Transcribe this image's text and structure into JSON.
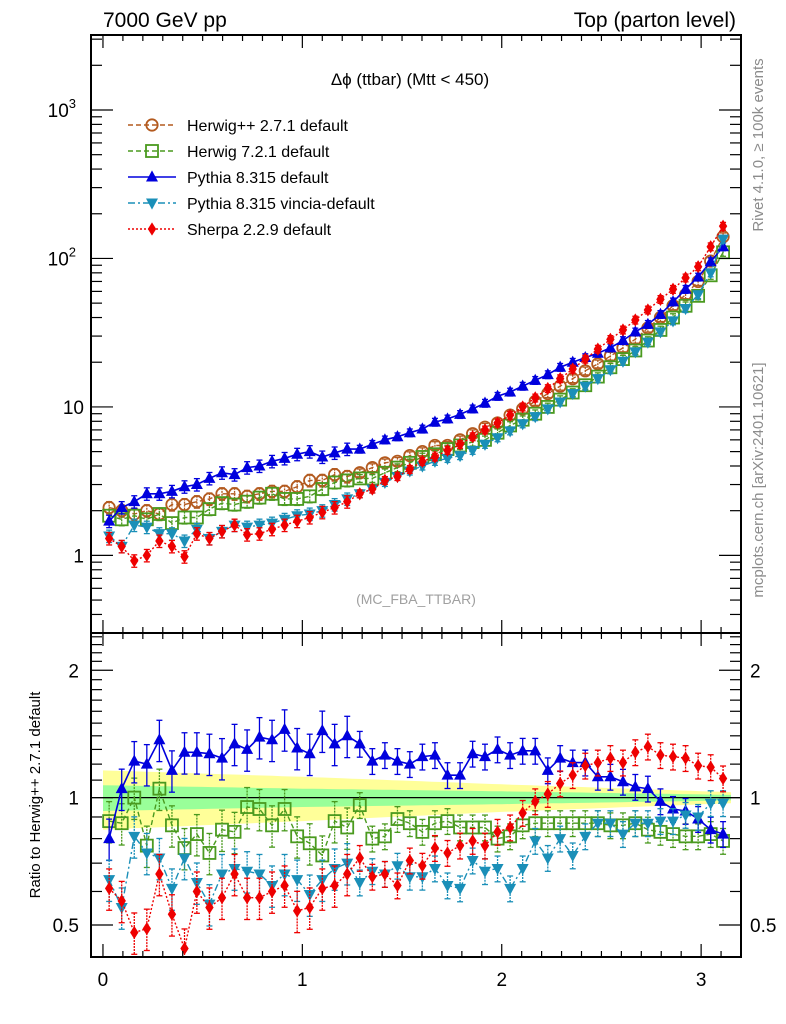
{
  "header": {
    "left": "7000 GeV pp",
    "right": "Top (parton level)"
  },
  "side_labels": {
    "rivet": "Rivet 4.1.0, ≥ 100k events",
    "mcplots": "mcplots.cern.ch [arXiv:2401.10621]"
  },
  "chart_data": [
    {
      "type": "line",
      "title": "Δϕ (ttbar) (Mtt < 450)",
      "watermark": "(MC_FBA_TTBAR)",
      "xlabel": "",
      "ylabel": "",
      "yscale": "log",
      "xlim": [
        -0.06,
        3.2
      ],
      "ylim": [
        0.3,
        3200
      ],
      "x_ticks": [
        0,
        1,
        2,
        3
      ],
      "x_tick_labels": [
        "0",
        "1",
        "2",
        "3"
      ],
      "y_ticks": [
        1,
        10,
        100,
        1000
      ],
      "y_tick_labels": [
        "1",
        "10",
        "10^2",
        "10^3"
      ],
      "legend_position": "top-left",
      "x": [
        0.031,
        0.094,
        0.157,
        0.22,
        0.283,
        0.346,
        0.409,
        0.471,
        0.534,
        0.597,
        0.66,
        0.723,
        0.785,
        0.848,
        0.911,
        0.974,
        1.037,
        1.1,
        1.162,
        1.225,
        1.288,
        1.351,
        1.414,
        1.477,
        1.539,
        1.602,
        1.665,
        1.728,
        1.791,
        1.854,
        1.916,
        1.979,
        2.042,
        2.105,
        2.168,
        2.231,
        2.293,
        2.356,
        2.419,
        2.482,
        2.545,
        2.608,
        2.67,
        2.733,
        2.796,
        2.859,
        2.922,
        2.985,
        3.048,
        3.11
      ],
      "series": [
        {
          "name": "Herwig++ 2.7.1 default",
          "color": "#b35a1f",
          "marker": "open-circle",
          "line": "dashed",
          "values": [
            2.1,
            2.0,
            1.9,
            2.0,
            1.9,
            2.2,
            2.2,
            2.3,
            2.4,
            2.6,
            2.6,
            2.5,
            2.6,
            2.7,
            2.7,
            2.9,
            3.2,
            3.2,
            3.5,
            3.4,
            3.6,
            3.9,
            4.2,
            4.3,
            4.7,
            5.0,
            5.5,
            5.5,
            6.0,
            6.6,
            7.3,
            7.8,
            8.8,
            9.7,
            10.9,
            12.3,
            13.8,
            15.5,
            17.5,
            19.5,
            22.0,
            25.0,
            28.6,
            34.0,
            40.0,
            48.0,
            57.0,
            70.0,
            96.0,
            140.0
          ]
        },
        {
          "name": "Herwig 7.2.1 default",
          "color": "#4a9a1f",
          "marker": "open-square",
          "line": "dashed",
          "values": [
            1.85,
            1.75,
            1.85,
            1.75,
            1.9,
            1.65,
            1.8,
            1.8,
            2.05,
            2.25,
            2.2,
            2.3,
            2.45,
            2.6,
            2.4,
            2.4,
            2.5,
            2.8,
            3.1,
            3.2,
            3.3,
            3.3,
            3.6,
            3.9,
            4.2,
            4.6,
            4.8,
            5.2,
            5.5,
            5.8,
            6.0,
            6.7,
            7.5,
            8.2,
            9.0,
            10.0,
            11.2,
            12.5,
            14.0,
            16.0,
            18.5,
            21.0,
            24.0,
            28.0,
            33.0,
            40.0,
            48.0,
            56.0,
            77.0,
            110.0
          ]
        },
        {
          "name": "Pythia 8.315 default",
          "color": "#0000dd",
          "marker": "filled-triangle-up",
          "line": "solid",
          "values": [
            1.7,
            2.1,
            2.3,
            2.6,
            2.6,
            2.7,
            2.9,
            3.0,
            3.3,
            3.6,
            3.5,
            3.9,
            4.0,
            4.3,
            4.5,
            4.8,
            5.0,
            4.6,
            4.9,
            5.2,
            5.2,
            5.6,
            6.0,
            6.3,
            6.7,
            7.1,
            7.9,
            8.3,
            8.9,
            9.7,
            10.6,
            11.8,
            12.6,
            13.8,
            15.1,
            16.5,
            18.5,
            20.0,
            21.5,
            23.0,
            25.0,
            28.0,
            32.0,
            36.0,
            42.0,
            51.0,
            62.0,
            75.0,
            95.0,
            120.0
          ]
        },
        {
          "name": "Pythia 8.315 vincia-default",
          "color": "#1a8fb8",
          "marker": "filled-triangle-down",
          "line": "dash-dot",
          "values": [
            1.35,
            1.15,
            1.6,
            1.55,
            1.4,
            1.4,
            1.25,
            1.5,
            1.3,
            1.45,
            1.6,
            1.55,
            1.6,
            1.65,
            1.75,
            1.85,
            1.9,
            2.0,
            2.2,
            2.4,
            2.6,
            2.8,
            3.1,
            3.4,
            3.7,
            4.0,
            4.3,
            4.5,
            4.7,
            5.1,
            5.6,
            6.2,
            6.9,
            7.7,
            8.6,
            9.7,
            10.8,
            12.3,
            13.8,
            15.5,
            17.8,
            20.3,
            23.5,
            27.3,
            32.0,
            38.0,
            46.0,
            57.0,
            80.0,
            135.0
          ]
        },
        {
          "name": "Sherpa 2.2.9 default",
          "color": "#ee0000",
          "marker": "filled-diamond",
          "line": "dotted",
          "values": [
            1.3,
            1.15,
            0.92,
            1.0,
            1.25,
            1.15,
            0.98,
            1.4,
            1.3,
            1.45,
            1.6,
            1.38,
            1.4,
            1.5,
            1.6,
            1.7,
            1.8,
            1.95,
            2.1,
            2.3,
            2.6,
            2.8,
            3.2,
            3.4,
            3.8,
            4.3,
            4.6,
            5.1,
            5.6,
            6.3,
            7.0,
            7.8,
            8.8,
            10.0,
            11.5,
            13.3,
            15.5,
            18.0,
            21.0,
            24.5,
            28.5,
            33.0,
            38.5,
            45.0,
            53.0,
            62.0,
            74.0,
            88.0,
            120.0,
            165.0
          ]
        }
      ]
    },
    {
      "type": "line",
      "title": "",
      "xlabel": "",
      "ylabel": "Ratio to Herwig++ 2.7.1 default",
      "yscale": "log",
      "xlim": [
        -0.06,
        3.2
      ],
      "ylim": [
        0.42,
        2.45
      ],
      "x_ticks": [
        0,
        1,
        2,
        3
      ],
      "x_tick_labels": [
        "0",
        "1",
        "2",
        "3"
      ],
      "y_ticks": [
        0.5,
        1,
        2
      ],
      "y_tick_labels": [
        "0.5",
        "1",
        "2"
      ],
      "reference_line": 1,
      "uncertainty_bands": {
        "inner_color": "#99ff99",
        "outer_color": "#ffff99",
        "x": [
          0.0,
          1.0,
          2.0,
          3.15
        ],
        "inner_halfwidth": [
          0.07,
          0.05,
          0.035,
          0.015
        ],
        "outer_halfwidth": [
          0.16,
          0.12,
          0.075,
          0.03
        ]
      },
      "x": [
        0.031,
        0.094,
        0.157,
        0.22,
        0.283,
        0.346,
        0.409,
        0.471,
        0.534,
        0.597,
        0.66,
        0.723,
        0.785,
        0.848,
        0.911,
        0.974,
        1.037,
        1.1,
        1.162,
        1.225,
        1.288,
        1.351,
        1.414,
        1.477,
        1.539,
        1.602,
        1.665,
        1.728,
        1.791,
        1.854,
        1.916,
        1.979,
        2.042,
        2.105,
        2.168,
        2.231,
        2.293,
        2.356,
        2.419,
        2.482,
        2.545,
        2.608,
        2.67,
        2.733,
        2.796,
        2.859,
        2.922,
        2.985,
        3.048,
        3.11
      ],
      "series": [
        {
          "name": "Herwig 7.2.1 default",
          "color": "#4a9a1f",
          "marker": "open-square",
          "line": "dashed",
          "values": [
            0.88,
            0.87,
            1.0,
            0.77,
            1.05,
            0.86,
            0.76,
            0.82,
            0.74,
            0.84,
            0.83,
            0.95,
            0.94,
            0.86,
            0.94,
            0.81,
            0.78,
            0.73,
            0.88,
            0.85,
            0.96,
            0.8,
            0.81,
            0.89,
            0.87,
            0.83,
            0.87,
            0.88,
            0.85,
            0.85,
            0.85,
            0.8,
            0.81,
            0.86,
            0.87,
            0.87,
            0.87,
            0.87,
            0.87,
            0.87,
            0.86,
            0.86,
            0.87,
            0.84,
            0.83,
            0.82,
            0.81,
            0.81,
            0.82,
            0.79
          ]
        },
        {
          "name": "Pythia 8.315 default",
          "color": "#0000dd",
          "marker": "filled-triangle-up",
          "line": "solid",
          "values": [
            0.8,
            1.05,
            1.22,
            1.2,
            1.37,
            1.16,
            1.28,
            1.28,
            1.27,
            1.24,
            1.34,
            1.3,
            1.39,
            1.37,
            1.45,
            1.31,
            1.27,
            1.44,
            1.34,
            1.4,
            1.34,
            1.22,
            1.26,
            1.22,
            1.2,
            1.25,
            1.26,
            1.13,
            1.13,
            1.27,
            1.25,
            1.3,
            1.26,
            1.29,
            1.29,
            1.16,
            1.24,
            1.21,
            1.21,
            1.12,
            1.12,
            1.09,
            1.06,
            1.05,
            0.98,
            0.94,
            0.93,
            0.89,
            0.84,
            0.82
          ]
        },
        {
          "name": "Pythia 8.315 vincia-default",
          "color": "#1a8fb8",
          "marker": "filled-triangle-down",
          "line": "dash-dot",
          "values": [
            0.64,
            0.55,
            0.81,
            0.74,
            0.72,
            0.61,
            0.72,
            0.63,
            0.56,
            0.66,
            0.68,
            0.67,
            0.66,
            0.62,
            0.66,
            0.64,
            0.59,
            0.64,
            0.68,
            0.7,
            0.63,
            0.67,
            0.66,
            0.69,
            0.65,
            0.65,
            0.68,
            0.62,
            0.61,
            0.71,
            0.67,
            0.68,
            0.61,
            0.68,
            0.79,
            0.72,
            0.8,
            0.73,
            0.81,
            0.87,
            0.87,
            0.82,
            0.87,
            0.87,
            0.88,
            0.88,
            0.91,
            0.9,
            0.97,
            0.97
          ]
        },
        {
          "name": "Sherpa 2.2.9 default",
          "color": "#ee0000",
          "marker": "filled-diamond",
          "line": "dotted",
          "values": [
            0.61,
            0.57,
            0.48,
            0.49,
            0.66,
            0.53,
            0.44,
            0.6,
            0.55,
            0.58,
            0.66,
            0.58,
            0.58,
            0.6,
            0.62,
            0.54,
            0.55,
            0.61,
            0.62,
            0.66,
            0.72,
            0.65,
            0.66,
            0.62,
            0.71,
            0.69,
            0.76,
            0.74,
            0.77,
            0.79,
            0.77,
            0.83,
            0.85,
            0.92,
            0.98,
            1.02,
            1.08,
            1.13,
            1.19,
            1.21,
            1.24,
            1.21,
            1.28,
            1.32,
            1.26,
            1.25,
            1.24,
            1.19,
            1.18,
            1.11
          ]
        }
      ]
    }
  ]
}
